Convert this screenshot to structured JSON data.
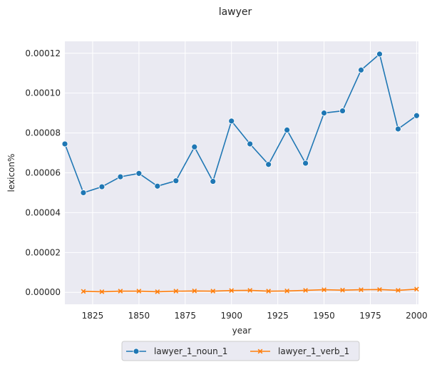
{
  "chart_data": {
    "type": "line",
    "title": "lawyer",
    "xlabel": "year",
    "ylabel": "lexicon%",
    "xlim": [
      1810,
      2001
    ],
    "ylim": [
      -6e-06,
      0.000126
    ],
    "xticks": [
      1825,
      1850,
      1875,
      1900,
      1925,
      1950,
      1975,
      2000
    ],
    "xtick_labels": [
      "1825",
      "1850",
      "1875",
      "1900",
      "1925",
      "1950",
      "1975",
      "2000"
    ],
    "yticks": [
      0,
      2e-05,
      4e-05,
      6e-05,
      8e-05,
      0.0001,
      0.00012
    ],
    "ytick_labels": [
      "0.00000",
      "0.00002",
      "0.00004",
      "0.00006",
      "0.00008",
      "0.00010",
      "0.00012"
    ],
    "grid": true,
    "legend_position": "bottom-center",
    "series": [
      {
        "name": "lawyer_1_noun_1",
        "color": "#1f77b4",
        "marker": "circle",
        "x": [
          1810,
          1820,
          1830,
          1840,
          1850,
          1860,
          1870,
          1880,
          1890,
          1900,
          1910,
          1920,
          1930,
          1940,
          1950,
          1960,
          1970,
          1980,
          1990,
          2000
        ],
        "y": [
          7.45e-05,
          5e-05,
          5.3e-05,
          5.8e-05,
          5.97e-05,
          5.33e-05,
          5.6e-05,
          7.3e-05,
          5.57e-05,
          8.6e-05,
          7.45e-05,
          6.42e-05,
          8.15e-05,
          6.48e-05,
          9e-05,
          9.11e-05,
          0.0001116,
          0.0001196,
          8.2e-05,
          8.87e-05
        ]
      },
      {
        "name": "lawyer_1_verb_1",
        "color": "#ff7f0e",
        "marker": "x",
        "x": [
          1820,
          1830,
          1840,
          1850,
          1860,
          1870,
          1880,
          1890,
          1900,
          1910,
          1920,
          1930,
          1940,
          1950,
          1960,
          1970,
          1980,
          1990,
          2000
        ],
        "y": [
          5e-07,
          3e-07,
          6e-07,
          6e-07,
          3e-07,
          6e-07,
          7e-07,
          6e-07,
          9e-07,
          1e-06,
          6e-07,
          7e-07,
          1e-06,
          1.3e-06,
          1.1e-06,
          1.3e-06,
          1.4e-06,
          1e-06,
          1.6e-06
        ]
      }
    ]
  }
}
